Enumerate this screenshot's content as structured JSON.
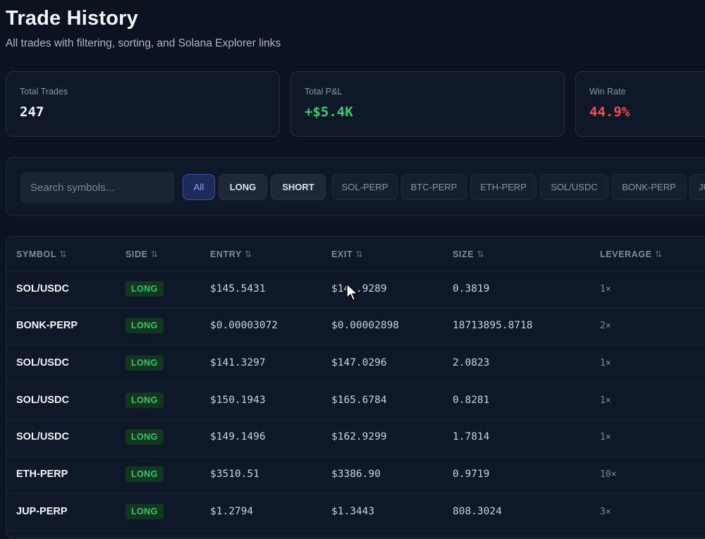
{
  "header": {
    "title": "Trade History",
    "subtitle": "All trades with filtering, sorting, and Solana Explorer links"
  },
  "stats": [
    {
      "label": "Total Trades",
      "value": "247",
      "color": "#f1f5f9"
    },
    {
      "label": "Total P&L",
      "value": "+$5.4K",
      "color": "#2fd06b"
    },
    {
      "label": "Win Rate",
      "value": "44.9%",
      "color": "#ef4e4e"
    }
  ],
  "filters": {
    "search_placeholder": "Search symbols...",
    "sides": [
      "All",
      "LONG",
      "SHORT"
    ],
    "symbols": [
      "SOL-PERP",
      "BTC-PERP",
      "ETH-PERP",
      "SOL/USDC",
      "BONK-PERP",
      "JUP-PERP"
    ],
    "active": "All"
  },
  "table": {
    "sort_icon": "⇅",
    "columns": [
      "SYMBOL",
      "SIDE",
      "ENTRY",
      "EXIT",
      "SIZE",
      "LEVERAGE"
    ],
    "rows": [
      {
        "symbol": "SOL/USDC",
        "side": "LONG",
        "entry": "$145.5431",
        "exit": "$14_.9289",
        "size": "0.3819",
        "leverage": "1×"
      },
      {
        "symbol": "BONK-PERP",
        "side": "LONG",
        "entry": "$0.00003072",
        "exit": "$0.00002898",
        "size": "18713895.8718",
        "leverage": "2×"
      },
      {
        "symbol": "SOL/USDC",
        "side": "LONG",
        "entry": "$141.3297",
        "exit": "$147.0296",
        "size": "2.0823",
        "leverage": "1×"
      },
      {
        "symbol": "SOL/USDC",
        "side": "LONG",
        "entry": "$150.1943",
        "exit": "$165.6784",
        "size": "0.8281",
        "leverage": "1×"
      },
      {
        "symbol": "SOL/USDC",
        "side": "LONG",
        "entry": "$149.1496",
        "exit": "$162.9299",
        "size": "1.7814",
        "leverage": "1×"
      },
      {
        "symbol": "ETH-PERP",
        "side": "LONG",
        "entry": "$3510.51",
        "exit": "$3386.90",
        "size": "0.9719",
        "leverage": "10×"
      },
      {
        "symbol": "JUP-PERP",
        "side": "LONG",
        "entry": "$1.2794",
        "exit": "$1.3443",
        "size": "808.3024",
        "leverage": "3×"
      }
    ]
  }
}
